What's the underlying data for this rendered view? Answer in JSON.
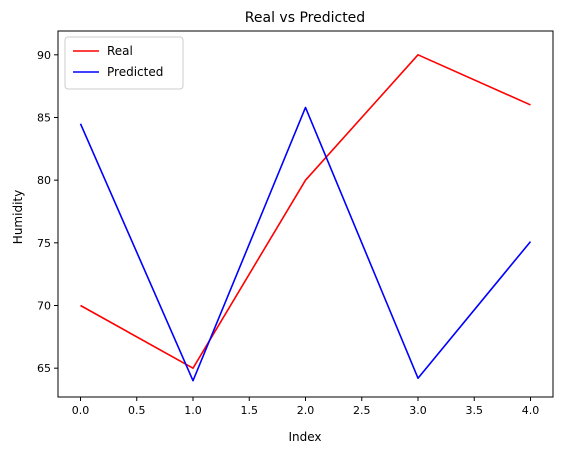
{
  "chart_data": {
    "type": "line",
    "title": "Real vs Predicted",
    "xlabel": "Index",
    "ylabel": "Humidity",
    "x": [
      0,
      1,
      2,
      3,
      4
    ],
    "xlim": [
      -0.2,
      4.2
    ],
    "ylim": [
      62.7,
      91.9
    ],
    "xticks": [
      0,
      0.5,
      1,
      1.5,
      2,
      2.5,
      3,
      3.5,
      4
    ],
    "xtick_labels": [
      "0.0",
      "0.5",
      "1.0",
      "1.5",
      "2.0",
      "2.5",
      "3.0",
      "3.5",
      "4.0"
    ],
    "yticks": [
      65,
      70,
      75,
      80,
      85,
      90
    ],
    "ytick_labels": [
      "65",
      "70",
      "75",
      "80",
      "85",
      "90"
    ],
    "grid": false,
    "legend_position": "top-left",
    "series": [
      {
        "name": "Real",
        "color": "#ff0000",
        "values": [
          70,
          65,
          80,
          90,
          86
        ]
      },
      {
        "name": "Predicted",
        "color": "#0000ff",
        "values": [
          84.5,
          64,
          85.8,
          64.2,
          75.1
        ]
      }
    ]
  }
}
